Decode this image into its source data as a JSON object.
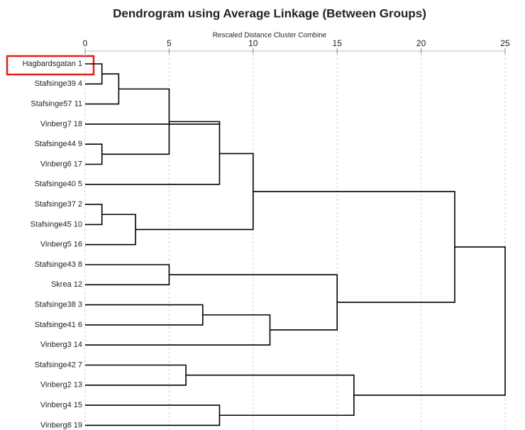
{
  "chart_data": {
    "type": "dendrogram",
    "title": "Dendrogram using Average Linkage (Between Groups)",
    "x_label": "Rescaled Distance Cluster Combine",
    "xlim": [
      0,
      25
    ],
    "xticks": [
      0,
      5,
      10,
      15,
      20,
      25
    ],
    "grid": true,
    "color": "#000000",
    "labels": [
      "Hagbardsgatan 1",
      "Stafsinge39 4",
      "Stafsinge57 11",
      "Vinberg7 18",
      "Stafsinge44 9",
      "Vinberg6 17",
      "Stafsinge40 5",
      "Stafsinge37 2",
      "Stafsinge45 10",
      "Vinberg5 16",
      "Stafsinge43 8",
      "Skrea 12",
      "Stafsinge38 3",
      "Stafsinge41 6",
      "Vinberg3 14",
      "Stafsinge42 7",
      "Vinberg2 13",
      "Vinberg4 15",
      "Vinberg8 19"
    ],
    "merges": [
      {
        "left": 0,
        "right": 1,
        "height": 1
      },
      {
        "left": 19,
        "right": 2,
        "height": 2
      },
      {
        "left": 4,
        "right": 5,
        "height": 1
      },
      {
        "left": 20,
        "right": 21,
        "height": 5
      },
      {
        "left": 22,
        "right": 3,
        "height": 8
      },
      {
        "left": 23,
        "right": 6,
        "height": 8
      },
      {
        "left": 7,
        "right": 8,
        "height": 1
      },
      {
        "left": 25,
        "right": 9,
        "height": 3
      },
      {
        "left": 24,
        "right": 26,
        "height": 10
      },
      {
        "left": 10,
        "right": 11,
        "height": 5
      },
      {
        "left": 12,
        "right": 13,
        "height": 7
      },
      {
        "left": 29,
        "right": 14,
        "height": 11
      },
      {
        "left": 28,
        "right": 30,
        "height": 15
      },
      {
        "left": 27,
        "right": 31,
        "height": 22
      },
      {
        "left": 15,
        "right": 16,
        "height": 6
      },
      {
        "left": 17,
        "right": 18,
        "height": 8
      },
      {
        "left": 33,
        "right": 34,
        "height": 16
      },
      {
        "left": 32,
        "right": 35,
        "height": 25
      }
    ]
  }
}
